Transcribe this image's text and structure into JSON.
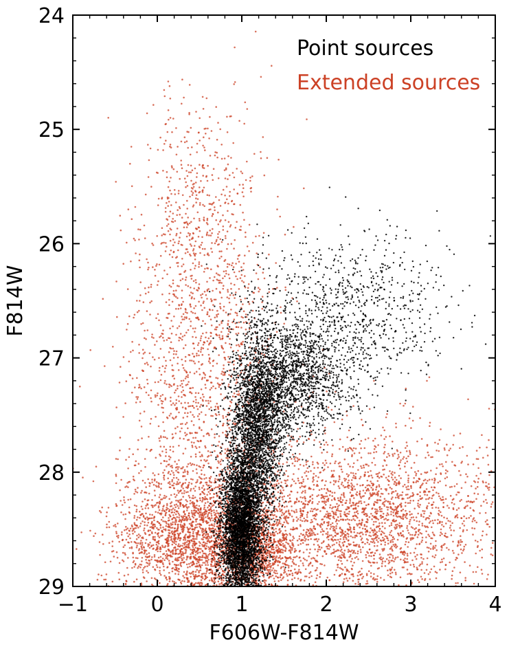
{
  "chart_data": {
    "type": "scatter",
    "title": "",
    "xlabel": "F606W-F814W",
    "ylabel": "F814W",
    "xlim": [
      -1,
      4
    ],
    "ylim": [
      24,
      29
    ],
    "y_inverted": true,
    "grid": false,
    "legend_position": "top-right",
    "x_ticks": [
      -1,
      0,
      1,
      2,
      3,
      4
    ],
    "x_tick_labels": [
      "−1",
      "0",
      "1",
      "2",
      "3",
      "4"
    ],
    "y_ticks": [
      24,
      25,
      26,
      27,
      28,
      29
    ],
    "y_tick_labels": [
      "24",
      "25",
      "26",
      "27",
      "28",
      "29"
    ],
    "series": [
      {
        "name": "Extended sources",
        "color": "#cc4125",
        "approx_density_regions": [
          {
            "x_center": 0.45,
            "y_center": 28.6,
            "x_spread": 0.45,
            "y_spread": 0.3
          },
          {
            "x_center": 1.2,
            "y_center": 28.7,
            "x_spread": 0.25,
            "y_spread": 0.2
          },
          {
            "x_center": 2.4,
            "y_center": 28.4,
            "x_spread": 0.8,
            "y_spread": 0.35
          },
          {
            "x_center": 0.55,
            "y_center": 27.2,
            "x_spread": 0.45,
            "y_spread": 0.8
          },
          {
            "x_center": 0.5,
            "y_center": 25.7,
            "x_spread": 0.35,
            "y_spread": 0.5
          }
        ]
      },
      {
        "name": "Point sources",
        "color": "#000000",
        "approx_density_regions": [
          {
            "x_center": 1.0,
            "y_center": 28.5,
            "x_spread": 0.12,
            "y_spread": 0.35
          },
          {
            "x_center": 1.2,
            "y_center": 27.6,
            "x_spread": 0.15,
            "y_spread": 0.4
          },
          {
            "x_center": 1.6,
            "y_center": 27.2,
            "x_spread": 0.35,
            "y_spread": 0.25
          },
          {
            "x_center": 2.2,
            "y_center": 26.6,
            "x_spread": 0.6,
            "y_spread": 0.35
          }
        ]
      }
    ]
  }
}
